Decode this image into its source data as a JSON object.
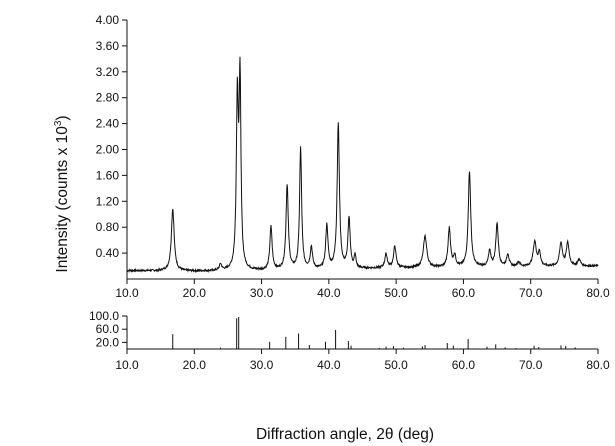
{
  "chart_data": [
    {
      "type": "line",
      "panel": "measured-pattern",
      "title": "",
      "ylabel": "Intensity (counts x 10",
      "ylabel_exponent": "3",
      "ylabel_suffix": ")",
      "xlim": [
        10.0,
        80.0
      ],
      "ylim": [
        0.0,
        4.0
      ],
      "xticks": [
        "10.0",
        "20.0",
        "30.0",
        "40.0",
        "50.0",
        "60.0",
        "70.0",
        "80.0"
      ],
      "yticks": [
        "0.40",
        "0.80",
        "1.20",
        "1.60",
        "2.00",
        "2.40",
        "2.80",
        "3.20",
        "3.60",
        "4.00"
      ],
      "baseline": [
        [
          10.0,
          0.13
        ],
        [
          20.0,
          0.12
        ],
        [
          30.0,
          0.13
        ],
        [
          40.0,
          0.15
        ],
        [
          50.0,
          0.17
        ],
        [
          60.0,
          0.18
        ],
        [
          70.0,
          0.19
        ],
        [
          80.0,
          0.2
        ]
      ],
      "peaks": [
        {
          "x": 16.8,
          "y": 1.08,
          "w": 0.25
        },
        {
          "x": 23.9,
          "y": 0.22,
          "w": 0.2
        },
        {
          "x": 26.4,
          "y": 2.72,
          "w": 0.18
        },
        {
          "x": 26.8,
          "y": 3.0,
          "w": 0.16
        },
        {
          "x": 31.4,
          "y": 0.8,
          "w": 0.2
        },
        {
          "x": 33.8,
          "y": 1.45,
          "w": 0.2
        },
        {
          "x": 35.8,
          "y": 2.02,
          "w": 0.18
        },
        {
          "x": 37.4,
          "y": 0.48,
          "w": 0.2
        },
        {
          "x": 39.7,
          "y": 0.82,
          "w": 0.2
        },
        {
          "x": 41.4,
          "y": 2.4,
          "w": 0.2
        },
        {
          "x": 43.0,
          "y": 0.92,
          "w": 0.2
        },
        {
          "x": 43.9,
          "y": 0.35,
          "w": 0.15
        },
        {
          "x": 48.5,
          "y": 0.38,
          "w": 0.22
        },
        {
          "x": 49.8,
          "y": 0.5,
          "w": 0.22
        },
        {
          "x": 54.3,
          "y": 0.66,
          "w": 0.3
        },
        {
          "x": 57.9,
          "y": 0.78,
          "w": 0.22
        },
        {
          "x": 58.7,
          "y": 0.35,
          "w": 0.2
        },
        {
          "x": 60.9,
          "y": 1.65,
          "w": 0.22
        },
        {
          "x": 63.9,
          "y": 0.42,
          "w": 0.22
        },
        {
          "x": 65.0,
          "y": 0.85,
          "w": 0.22
        },
        {
          "x": 66.6,
          "y": 0.38,
          "w": 0.22
        },
        {
          "x": 68.2,
          "y": 0.26,
          "w": 0.22
        },
        {
          "x": 70.6,
          "y": 0.57,
          "w": 0.28
        },
        {
          "x": 71.3,
          "y": 0.4,
          "w": 0.2
        },
        {
          "x": 74.5,
          "y": 0.55,
          "w": 0.25
        },
        {
          "x": 75.5,
          "y": 0.55,
          "w": 0.25
        },
        {
          "x": 77.2,
          "y": 0.3,
          "w": 0.25
        }
      ]
    },
    {
      "type": "bar",
      "panel": "reference-stick-pattern",
      "title": "",
      "xlabel": "Diffraction angle, 2θ (deg)",
      "xlim": [
        10.0,
        80.0
      ],
      "ylim": [
        0.0,
        100.0
      ],
      "xticks": [
        "10.0",
        "20.0",
        "30.0",
        "40.0",
        "50.0",
        "60.0",
        "70.0",
        "80.0"
      ],
      "yticks": [
        "20.0",
        "60.0",
        "100.0"
      ],
      "sticks": [
        [
          16.8,
          45
        ],
        [
          23.9,
          4
        ],
        [
          26.3,
          93
        ],
        [
          26.6,
          97
        ],
        [
          31.2,
          22
        ],
        [
          33.6,
          37
        ],
        [
          35.5,
          47
        ],
        [
          37.1,
          12
        ],
        [
          39.5,
          22
        ],
        [
          41.0,
          58
        ],
        [
          42.9,
          24
        ],
        [
          43.3,
          10
        ],
        [
          47.5,
          3
        ],
        [
          48.5,
          7
        ],
        [
          49.6,
          9
        ],
        [
          51.1,
          4
        ],
        [
          53.9,
          8
        ],
        [
          54.3,
          12
        ],
        [
          57.6,
          18
        ],
        [
          58.5,
          10
        ],
        [
          60.7,
          30
        ],
        [
          63.5,
          7
        ],
        [
          64.8,
          14
        ],
        [
          66.2,
          5
        ],
        [
          67.8,
          3
        ],
        [
          70.5,
          10
        ],
        [
          71.2,
          6
        ],
        [
          74.5,
          11
        ],
        [
          75.2,
          9
        ],
        [
          76.6,
          5
        ]
      ]
    }
  ]
}
